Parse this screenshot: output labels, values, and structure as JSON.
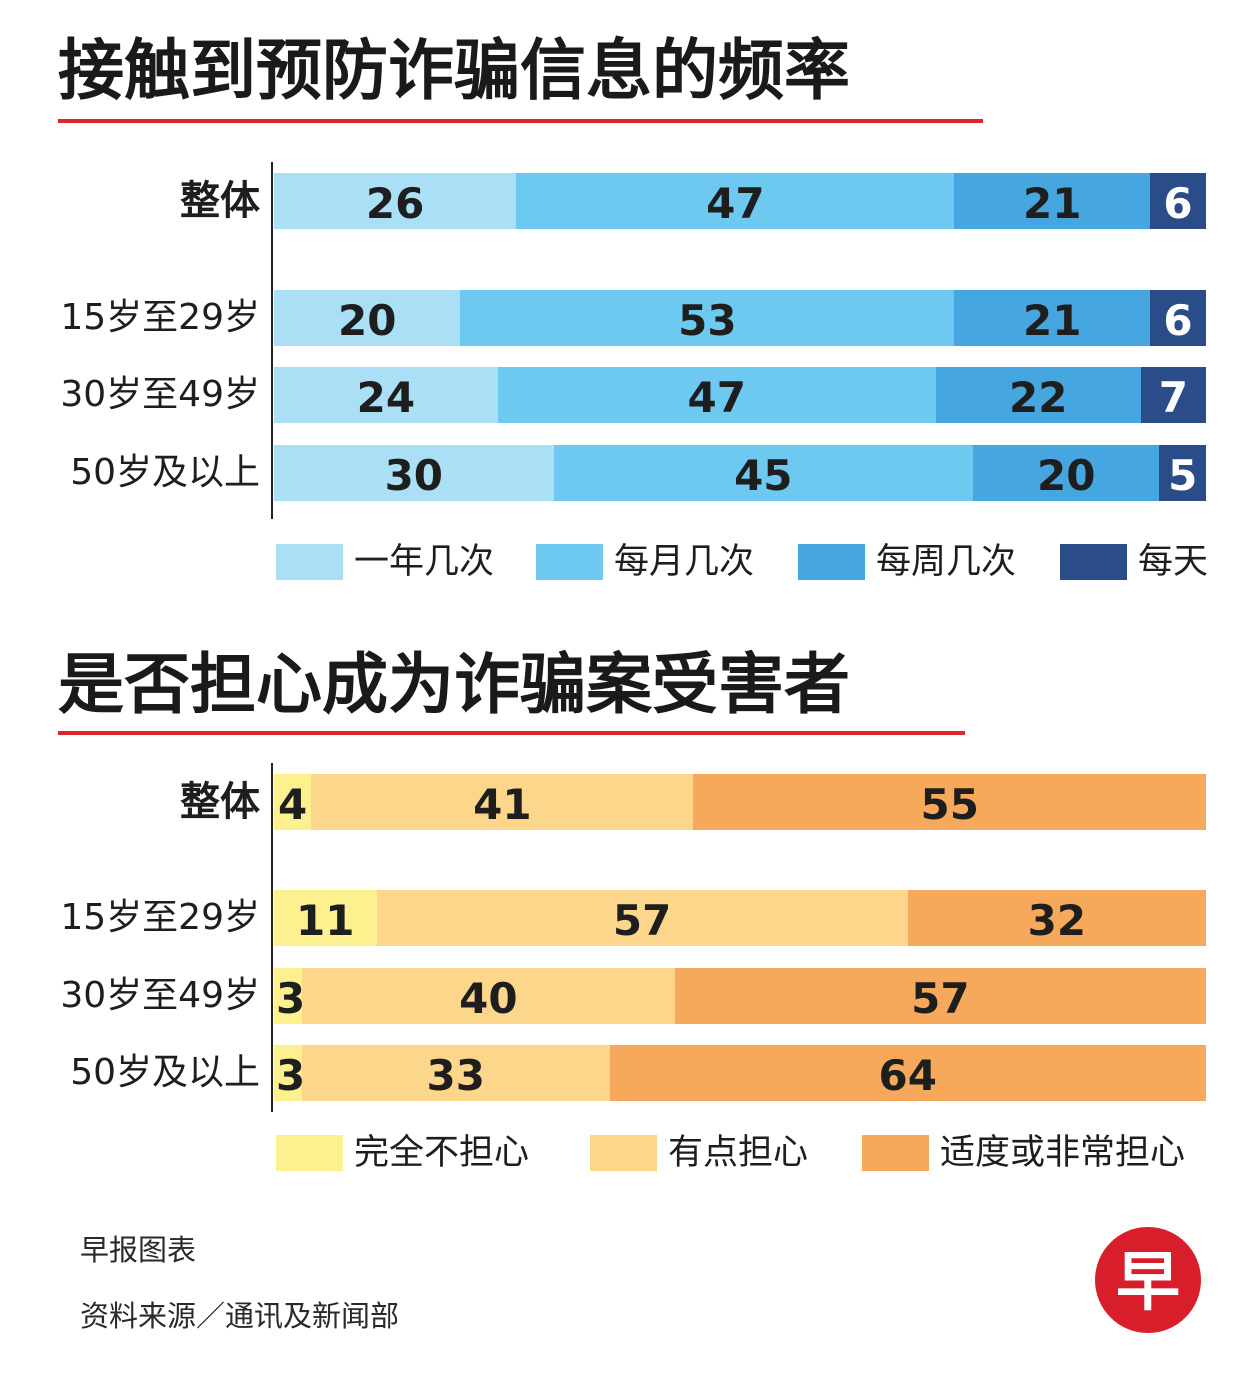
{
  "colors": {
    "title_underline": "#e0242c",
    "axis": "#222222",
    "logo_red": "#d81e2a"
  },
  "chart_data": [
    {
      "type": "bar",
      "orientation": "horizontal",
      "stacked": true,
      "percent_stacked": true,
      "title": "接触到预防诈骗信息的频率",
      "categories": [
        "整体",
        "15岁至29岁",
        "30岁至49岁",
        "50岁及以上"
      ],
      "series": [
        {
          "name": "一年几次",
          "color": "#aadff5",
          "text_color": "#1e1e1e",
          "values": [
            26,
            20,
            24,
            30
          ]
        },
        {
          "name": "每月几次",
          "color": "#6dc9f0",
          "text_color": "#1e1e1e",
          "values": [
            47,
            53,
            47,
            45
          ]
        },
        {
          "name": "每周几次",
          "color": "#45a6e0",
          "text_color": "#1e1e1e",
          "values": [
            21,
            21,
            22,
            20
          ]
        },
        {
          "name": "每天",
          "color": "#2a4d8a",
          "text_color": "#ffffff",
          "values": [
            6,
            6,
            7,
            5
          ]
        }
      ],
      "legend_position": "bottom",
      "grid": false
    },
    {
      "type": "bar",
      "orientation": "horizontal",
      "stacked": true,
      "percent_stacked": true,
      "title": "是否担心成为诈骗案受害者",
      "categories": [
        "整体",
        "15岁至29岁",
        "30岁至49岁",
        "50岁及以上"
      ],
      "series": [
        {
          "name": "完全不担心",
          "color": "#fdf08e",
          "text_color": "#1e1e1e",
          "values": [
            4,
            11,
            3,
            3
          ]
        },
        {
          "name": "有点担心",
          "color": "#fcd68a",
          "text_color": "#1e1e1e",
          "values": [
            41,
            57,
            40,
            33
          ]
        },
        {
          "name": "适度或非常担心",
          "color": "#f6a95a",
          "text_color": "#1e1e1e",
          "values": [
            55,
            32,
            57,
            64
          ]
        }
      ],
      "legend_position": "bottom",
      "grid": false
    }
  ],
  "footer": {
    "credit": "早报图表",
    "source": "资料来源／通讯及新闻部"
  },
  "logo": {
    "text": "早"
  }
}
